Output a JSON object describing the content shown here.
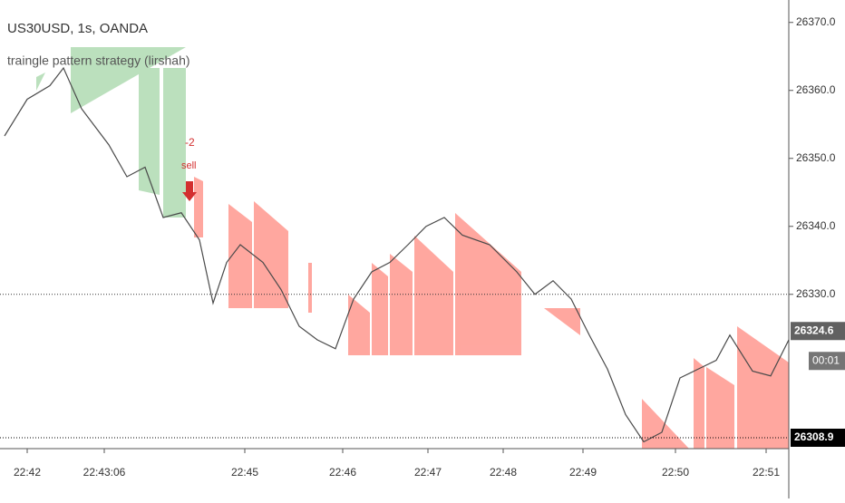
{
  "chart_data": {
    "type": "line",
    "title": "US30USD, 1s, OANDA",
    "subtitle": "traingle pattern strategy (lirshah)",
    "annotations": [
      "-2",
      "sell"
    ],
    "series": [
      {
        "name": "US30USD",
        "color": "#4a4a4a",
        "x": [
          5,
          30,
          55,
          70,
          90,
          120,
          140,
          160,
          180,
          200,
          220,
          235,
          250,
          265,
          290,
          310,
          330,
          350,
          370,
          390,
          410,
          430,
          450,
          470,
          490,
          510,
          540,
          570,
          590,
          610,
          630,
          650,
          670,
          690,
          710,
          730,
          750,
          770,
          790,
          805,
          830,
          850,
          870
        ],
        "values": [
          26353.3,
          26358.7,
          26360.7,
          26363.3,
          26357.3,
          26352,
          26347.3,
          26348.7,
          26341.3,
          26342,
          26338,
          26328.7,
          26334.7,
          26337.3,
          26334.7,
          26330.7,
          26325.3,
          26323.3,
          26322,
          26329.3,
          26333.3,
          26334.7,
          26337.3,
          26340,
          26341.3,
          26338.7,
          26337.3,
          26333.3,
          26330,
          26332,
          26329.3,
          26324,
          26319,
          26312.3,
          26308.3,
          26309.7,
          26317.7,
          26319,
          26320.3,
          26324,
          26318.7,
          26318,
          26323.3
        ]
      }
    ],
    "xlim": [
      0,
      870
    ],
    "xticks": [
      {
        "value": 30,
        "label": "22:42"
      },
      {
        "value": 115,
        "label": "22:43:06"
      },
      {
        "value": 270,
        "label": "22:45"
      },
      {
        "value": 378,
        "label": "22:46"
      },
      {
        "value": 472,
        "label": "22:47"
      },
      {
        "value": 555,
        "label": "22:48"
      },
      {
        "value": 643,
        "label": "22:49"
      },
      {
        "value": 745,
        "label": "22:50"
      },
      {
        "value": 845,
        "label": "22:51"
      }
    ],
    "ylim": [
      26307.3,
      26373.3
    ],
    "yticks": [
      {
        "value": 26330,
        "label": "26330.0"
      },
      {
        "value": 26340,
        "label": "26340.0"
      },
      {
        "value": 26350,
        "label": "26350.0"
      },
      {
        "value": 26360,
        "label": "26360.0"
      },
      {
        "value": 26370,
        "label": "26370.0"
      }
    ],
    "dotted_lines": [
      26330
    ],
    "last_price": 26324.6,
    "countdown": "00:01",
    "price_line": 26308.9
  }
}
